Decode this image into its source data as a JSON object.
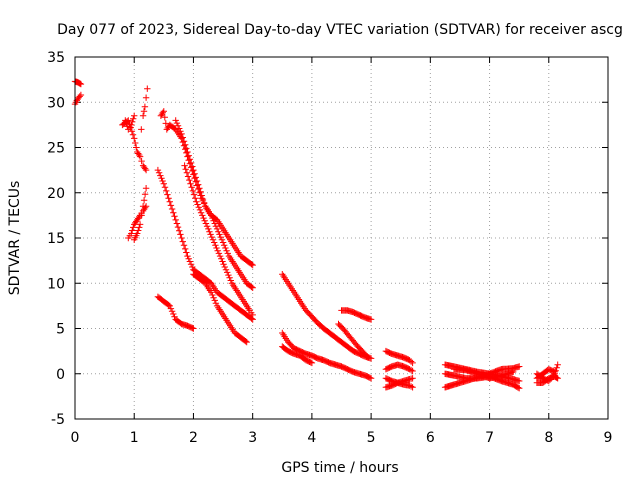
{
  "chart_data": {
    "type": "scatter",
    "title": "Day 077 of 2023, Sidereal Day-to-day VTEC variation (SDTVAR) for receiver ascg",
    "xlabel": "GPS time / hours",
    "ylabel": "SDTVAR / TECUs",
    "xlim": [
      0,
      9
    ],
    "ylim": [
      -5,
      35
    ],
    "xticks": [
      "0",
      "1",
      "2",
      "3",
      "4",
      "5",
      "6",
      "7",
      "8",
      "9"
    ],
    "yticks": [
      "-5",
      "0",
      "5",
      "10",
      "15",
      "20",
      "25",
      "30",
      "35"
    ],
    "grid": true,
    "marker": "+",
    "color": "#ff0000",
    "series": [
      {
        "name": "s1",
        "x": [
          0.0,
          0.05,
          0.1
        ],
        "y": [
          32.3,
          32.2,
          32.0
        ]
      },
      {
        "name": "s2",
        "x": [
          0.0,
          0.03,
          0.06,
          0.1
        ],
        "y": [
          29.8,
          30.2,
          30.5,
          30.8
        ]
      },
      {
        "name": "s3",
        "x": [
          0.8,
          0.9,
          1.0,
          1.05,
          1.1,
          1.15,
          1.2
        ],
        "y": [
          27.5,
          28.0,
          26.0,
          24.5,
          24.0,
          23.0,
          22.5
        ]
      },
      {
        "name": "s4",
        "x": [
          0.85,
          0.9,
          0.95,
          1.0
        ],
        "y": [
          28.0,
          27.0,
          27.5,
          28.5
        ]
      },
      {
        "name": "s5",
        "x": [
          1.12,
          1.15,
          1.18,
          1.2,
          1.22
        ],
        "y": [
          27.0,
          28.5,
          29.5,
          30.5,
          31.5
        ]
      },
      {
        "name": "s6",
        "x": [
          0.9,
          0.95,
          1.0,
          1.05,
          1.1,
          1.15,
          1.2
        ],
        "y": [
          15.0,
          15.5,
          16.5,
          17.0,
          17.5,
          18.0,
          18.5
        ]
      },
      {
        "name": "s7",
        "x": [
          1.0,
          1.05,
          1.1,
          1.15,
          1.2
        ],
        "y": [
          14.8,
          15.5,
          16.5,
          18.5,
          20.5
        ]
      },
      {
        "name": "s8",
        "x": [
          1.45,
          1.5,
          1.55,
          1.6,
          1.7,
          1.8,
          1.9,
          2.0,
          2.1,
          2.2,
          2.3,
          2.4,
          2.5,
          2.6,
          2.7,
          2.8,
          2.9,
          3.0
        ],
        "y": [
          28.5,
          29.0,
          27.0,
          27.5,
          27.0,
          26.0,
          24.0,
          22.0,
          20.0,
          18.5,
          17.5,
          17.0,
          16.0,
          15.0,
          14.0,
          13.0,
          12.5,
          12.0
        ]
      },
      {
        "name": "s9",
        "x": [
          1.7,
          1.8,
          1.9,
          2.0,
          2.1,
          2.2,
          2.3,
          2.4,
          2.5,
          2.6,
          2.7,
          2.8,
          2.9,
          3.0
        ],
        "y": [
          28.0,
          26.5,
          24.5,
          22.5,
          20.5,
          18.5,
          17.5,
          16.0,
          14.5,
          13.0,
          12.0,
          11.0,
          10.0,
          9.5
        ]
      },
      {
        "name": "s10",
        "x": [
          1.85,
          1.95,
          2.05,
          2.15,
          2.25,
          2.35,
          2.45,
          2.55,
          2.65,
          2.75,
          2.85,
          2.95,
          3.0
        ],
        "y": [
          23.0,
          21.0,
          19.0,
          17.5,
          16.0,
          14.5,
          13.0,
          11.5,
          10.0,
          9.0,
          8.0,
          7.0,
          6.5
        ]
      },
      {
        "name": "s11",
        "x": [
          1.4,
          1.5,
          1.6,
          1.7,
          1.8,
          1.9,
          2.0,
          2.1,
          2.2,
          2.3,
          2.4,
          2.5,
          2.6,
          2.7,
          2.8,
          2.9,
          3.0
        ],
        "y": [
          22.5,
          21.0,
          19.0,
          17.0,
          15.0,
          13.0,
          11.5,
          11.0,
          10.5,
          10.0,
          9.0,
          8.5,
          8.0,
          7.5,
          7.0,
          6.5,
          6.0
        ]
      },
      {
        "name": "s12",
        "x": [
          2.0,
          2.1,
          2.2,
          2.3,
          2.4,
          2.5,
          2.6,
          2.7,
          2.8,
          2.9
        ],
        "y": [
          11.0,
          10.5,
          10.0,
          9.0,
          7.5,
          6.5,
          5.5,
          4.5,
          4.0,
          3.5
        ]
      },
      {
        "name": "s13",
        "x": [
          1.4,
          1.5,
          1.6,
          1.7,
          1.8,
          1.9,
          2.0
        ],
        "y": [
          8.5,
          8.0,
          7.5,
          6.0,
          5.5,
          5.3,
          5.0
        ]
      },
      {
        "name": "s14",
        "x": [
          3.5,
          3.6,
          3.7,
          3.8,
          3.9,
          4.0,
          4.1,
          4.2,
          4.3,
          4.4,
          4.5,
          4.6,
          4.7,
          4.8,
          4.9,
          5.0
        ],
        "y": [
          11.0,
          10.0,
          9.0,
          8.0,
          7.0,
          6.3,
          5.6,
          5.0,
          4.5,
          4.0,
          3.5,
          3.0,
          2.5,
          2.2,
          1.9,
          1.7
        ]
      },
      {
        "name": "s15",
        "x": [
          3.5,
          3.6,
          3.7,
          3.8,
          3.9,
          4.0,
          4.1,
          4.2,
          4.3,
          4.4,
          4.5,
          4.6,
          4.7,
          4.8,
          4.9,
          5.0
        ],
        "y": [
          4.5,
          3.5,
          2.8,
          2.5,
          2.2,
          2.0,
          1.7,
          1.5,
          1.2,
          1.0,
          0.8,
          0.5,
          0.2,
          0.0,
          -0.2,
          -0.5
        ]
      },
      {
        "name": "s16",
        "x": [
          3.5,
          3.6,
          3.7,
          3.8,
          3.9,
          4.0
        ],
        "y": [
          3.0,
          2.5,
          2.2,
          2.0,
          1.5,
          1.2
        ]
      },
      {
        "name": "s17",
        "x": [
          4.45,
          4.55,
          4.65,
          4.75,
          4.85,
          4.95
        ],
        "y": [
          5.5,
          4.8,
          4.0,
          3.2,
          2.5,
          1.8
        ]
      },
      {
        "name": "s18",
        "x": [
          4.5,
          4.6,
          4.7,
          4.8,
          4.9,
          5.0
        ],
        "y": [
          7.0,
          7.0,
          6.8,
          6.5,
          6.2,
          6.0
        ]
      },
      {
        "name": "s19",
        "x": [
          5.25,
          5.35,
          5.45,
          5.55,
          5.65,
          5.7
        ],
        "y": [
          2.5,
          2.2,
          2.0,
          1.8,
          1.5,
          1.2
        ]
      },
      {
        "name": "s20",
        "x": [
          5.25,
          5.35,
          5.45,
          5.55,
          5.65,
          5.7
        ],
        "y": [
          0.5,
          0.8,
          1.0,
          0.8,
          0.5,
          0.3
        ]
      },
      {
        "name": "s21",
        "x": [
          5.25,
          5.35,
          5.45,
          5.55,
          5.65,
          5.7
        ],
        "y": [
          -0.5,
          -0.8,
          -1.0,
          -1.2,
          -1.3,
          -1.5
        ]
      },
      {
        "name": "s22",
        "x": [
          5.25,
          5.35,
          5.45,
          5.55,
          5.65,
          5.7
        ],
        "y": [
          -1.5,
          -1.3,
          -1.0,
          -0.8,
          -0.6,
          -0.5
        ]
      },
      {
        "name": "s23",
        "x": [
          6.25,
          6.4,
          6.6,
          6.8,
          7.0,
          7.2,
          7.4,
          7.5
        ],
        "y": [
          1.0,
          0.8,
          0.5,
          0.2,
          0.0,
          -0.3,
          -0.6,
          -0.8
        ]
      },
      {
        "name": "s24",
        "x": [
          6.25,
          6.4,
          6.6,
          6.8,
          7.0,
          7.2,
          7.4,
          7.5
        ],
        "y": [
          -1.5,
          -1.2,
          -0.8,
          -0.4,
          0.0,
          0.5,
          0.6,
          0.8
        ]
      },
      {
        "name": "s25",
        "x": [
          6.25,
          6.4,
          6.6,
          6.8,
          7.0,
          7.2,
          7.4,
          7.5
        ],
        "y": [
          0.0,
          -0.2,
          -0.5,
          -0.5,
          -0.3,
          -0.8,
          -1.2,
          -1.6
        ]
      },
      {
        "name": "s26",
        "x": [
          6.4,
          6.6,
          6.8,
          7.0,
          7.2,
          7.4
        ],
        "y": [
          0.5,
          0.4,
          0.0,
          -0.5,
          -0.2,
          0.2
        ]
      },
      {
        "name": "s27",
        "x": [
          7.8,
          7.9,
          8.0,
          8.1,
          8.15
        ],
        "y": [
          0.0,
          -0.5,
          -0.8,
          0.0,
          1.0
        ]
      },
      {
        "name": "s28",
        "x": [
          7.8,
          7.9,
          8.0,
          8.1,
          8.15
        ],
        "y": [
          -1.0,
          -1.0,
          -0.5,
          -0.3,
          -0.5
        ]
      },
      {
        "name": "s29",
        "x": [
          7.8,
          7.9,
          8.0,
          8.1
        ],
        "y": [
          -0.5,
          0.0,
          0.5,
          0.2
        ]
      }
    ]
  }
}
